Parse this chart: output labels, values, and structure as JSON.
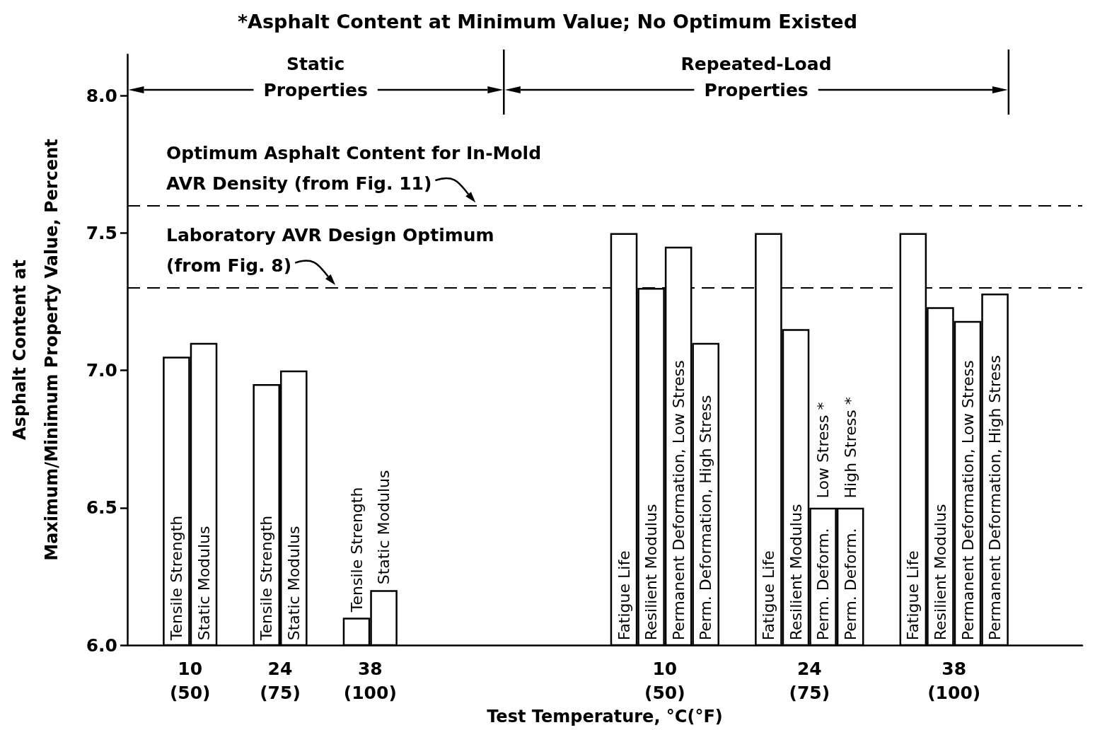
{
  "chart_data": {
    "type": "bar",
    "title": "*Asphalt Content at Minimum Value; No Optimum Existed",
    "xlabel": "Test Temperature, °C(°F)",
    "ylabel": "Asphalt Content at\nMaximum/Minimum Property Value, Percent",
    "categories": [
      "10\n(50)",
      "24\n(75)",
      "38\n(100)",
      "10\n(50)",
      "24\n(75)",
      "38\n(100)"
    ],
    "series": [
      {
        "name": "Tensile Strength",
        "color": "#ffffff",
        "values": [
          7.05,
          6.95,
          6.1,
          null,
          null,
          null
        ]
      },
      {
        "name": "Static Modulus",
        "color": "#ffffff",
        "values": [
          7.1,
          7.0,
          6.2,
          null,
          null,
          null
        ]
      },
      {
        "name": "Fatigue Life",
        "color": "#ffffff",
        "values": [
          null,
          null,
          null,
          7.5,
          7.5,
          7.5
        ]
      },
      {
        "name": "Resilient Modulus",
        "color": "#ffffff",
        "values": [
          null,
          null,
          null,
          7.3,
          7.15,
          7.23
        ]
      },
      {
        "name": "Permanent Deformation, Low Stress",
        "color": "#ffffff",
        "values": [
          null,
          null,
          null,
          7.45,
          null,
          7.18
        ]
      },
      {
        "name": "Perm. Deformation, High Stress",
        "color": "#ffffff",
        "values": [
          null,
          null,
          null,
          7.1,
          null,
          null
        ]
      },
      {
        "name": "Perm. Deform. Low Stress *",
        "color": "#ffffff",
        "values": [
          null,
          null,
          null,
          null,
          6.5,
          null
        ]
      },
      {
        "name": "Perm. Deform. High Stress *",
        "color": "#ffffff",
        "values": [
          null,
          null,
          null,
          null,
          6.5,
          null
        ]
      },
      {
        "name": "Permanent Deformation, High Stress",
        "color": "#ffffff",
        "values": [
          null,
          null,
          null,
          null,
          null,
          7.28
        ]
      }
    ],
    "ylim": [
      6.0,
      8.15
    ],
    "yticks": [
      {
        "value": 6,
        "label": "6.0"
      },
      {
        "value": 6.5,
        "label": "6.5"
      },
      {
        "value": 7,
        "label": "7.0"
      },
      {
        "value": 7.5,
        "label": "7.5"
      },
      {
        "value": 8,
        "label": "8.0"
      }
    ],
    "ref_lines": [
      {
        "axis": "y",
        "value": 7.6,
        "label": "Optimum Asphalt Content for In-Mold\nAVR Density (from Fig. 11)",
        "color": "#000000",
        "line_style": "dashed"
      },
      {
        "axis": "y",
        "value": 7.3,
        "label": "Laboratory AVR Design Optimum\n(from Fig. 8)",
        "color": "#000000",
        "line_style": "dashed"
      }
    ],
    "annotations": [
      "Static\nProperties",
      "Repeated-Load\nProperties"
    ]
  }
}
